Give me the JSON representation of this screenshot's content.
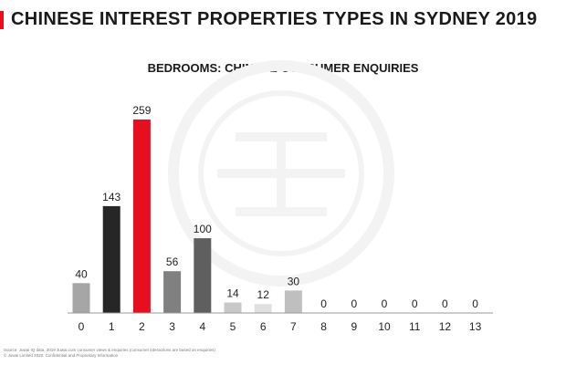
{
  "page": {
    "title": "CHINESE INTEREST PROPERTIES TYPES IN SYDNEY 2019",
    "accent_color": "#e60f1f"
  },
  "chart_data": {
    "type": "bar",
    "title": "BEDROOMS: CHINESE CONSUMER ENQUIRIES",
    "xlabel": "",
    "ylabel": "",
    "categories": [
      "0",
      "1",
      "2",
      "3",
      "4",
      "5",
      "6",
      "7",
      "8",
      "9",
      "10",
      "11",
      "12",
      "13"
    ],
    "values": [
      40,
      143,
      259,
      56,
      100,
      14,
      12,
      30,
      0,
      0,
      0,
      0,
      0,
      0
    ],
    "bar_colors": [
      "#a6a6a6",
      "#262626",
      "#e60f1f",
      "#808080",
      "#5f5f5f",
      "#c8c8c8",
      "#e0e0e0",
      "#bfbfbf",
      "#bfbfbf",
      "#bfbfbf",
      "#bfbfbf",
      "#bfbfbf",
      "#bfbfbf",
      "#bfbfbf"
    ],
    "ylim": [
      0,
      259
    ],
    "grid": false,
    "legend": "none"
  },
  "watermark": {
    "icon": "juwai-logo-watermark"
  },
  "footer": {
    "source": "Source: Juwai IQ data, 2019 Juwai.com consumer views & enquiries (consumer interactions are based on enquiries)",
    "copyright": "© Juwai Limited 2020. Confidential and Proprietary Information"
  }
}
